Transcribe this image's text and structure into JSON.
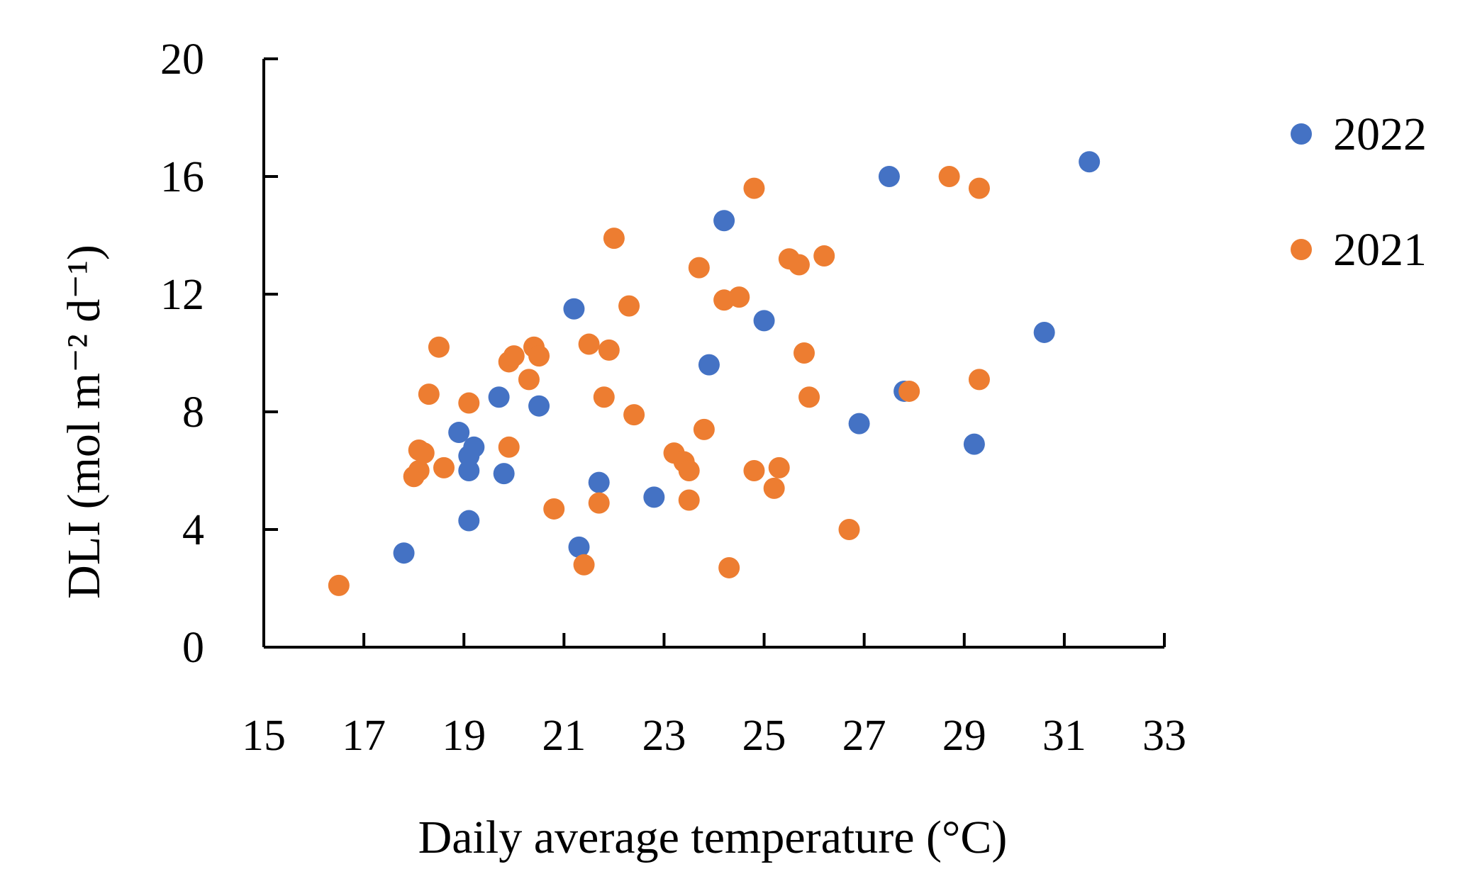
{
  "chart_data": {
    "type": "scatter",
    "title": "",
    "xlabel": "Daily average temperature  (°C)",
    "ylabel": "DLI (mol m⁻² d⁻¹)",
    "xlim": [
      15,
      33
    ],
    "ylim": [
      0,
      20
    ],
    "xticks": [
      15,
      17,
      19,
      21,
      23,
      25,
      27,
      29,
      31,
      33
    ],
    "yticks": [
      0,
      4,
      8,
      12,
      16,
      20
    ],
    "grid": false,
    "legend_position": "right",
    "series": [
      {
        "name": "2022",
        "color": "#4472C4",
        "points": [
          [
            17.8,
            3.2
          ],
          [
            18.9,
            7.3
          ],
          [
            19.1,
            4.3
          ],
          [
            19.1,
            6.0
          ],
          [
            19.1,
            6.5
          ],
          [
            19.2,
            6.8
          ],
          [
            19.7,
            8.5
          ],
          [
            19.8,
            5.9
          ],
          [
            20.5,
            8.2
          ],
          [
            21.2,
            11.5
          ],
          [
            21.3,
            3.4
          ],
          [
            21.7,
            5.6
          ],
          [
            22.8,
            5.1
          ],
          [
            23.9,
            9.6
          ],
          [
            24.2,
            14.5
          ],
          [
            25.0,
            11.1
          ],
          [
            26.9,
            7.6
          ],
          [
            27.5,
            16.0
          ],
          [
            27.8,
            8.7
          ],
          [
            29.2,
            6.9
          ],
          [
            30.6,
            10.7
          ],
          [
            31.5,
            16.5
          ]
        ]
      },
      {
        "name": "2021",
        "color": "#ED7D31",
        "points": [
          [
            16.5,
            2.1
          ],
          [
            18.0,
            5.8
          ],
          [
            18.1,
            6.0
          ],
          [
            18.1,
            6.7
          ],
          [
            18.2,
            6.6
          ],
          [
            18.3,
            8.6
          ],
          [
            18.5,
            10.2
          ],
          [
            18.6,
            6.1
          ],
          [
            19.1,
            8.3
          ],
          [
            19.9,
            9.7
          ],
          [
            19.9,
            6.8
          ],
          [
            20.0,
            9.9
          ],
          [
            20.3,
            9.1
          ],
          [
            20.4,
            10.2
          ],
          [
            20.5,
            9.9
          ],
          [
            20.8,
            4.7
          ],
          [
            21.4,
            2.8
          ],
          [
            21.5,
            10.3
          ],
          [
            21.7,
            4.9
          ],
          [
            21.8,
            8.5
          ],
          [
            21.9,
            10.1
          ],
          [
            22.0,
            13.9
          ],
          [
            22.3,
            11.6
          ],
          [
            22.4,
            7.9
          ],
          [
            23.2,
            6.6
          ],
          [
            23.4,
            6.3
          ],
          [
            23.5,
            6.0
          ],
          [
            23.5,
            5.0
          ],
          [
            23.7,
            12.9
          ],
          [
            23.8,
            7.4
          ],
          [
            24.2,
            11.8
          ],
          [
            24.3,
            2.7
          ],
          [
            24.5,
            11.9
          ],
          [
            24.8,
            15.6
          ],
          [
            24.8,
            6.0
          ],
          [
            25.2,
            5.4
          ],
          [
            25.3,
            6.1
          ],
          [
            25.5,
            13.2
          ],
          [
            25.7,
            13.0
          ],
          [
            25.8,
            10.0
          ],
          [
            25.9,
            8.5
          ],
          [
            26.2,
            13.3
          ],
          [
            26.7,
            4.0
          ],
          [
            27.9,
            8.7
          ],
          [
            28.7,
            16.0
          ],
          [
            29.3,
            9.1
          ],
          [
            29.3,
            15.6
          ]
        ]
      }
    ]
  }
}
